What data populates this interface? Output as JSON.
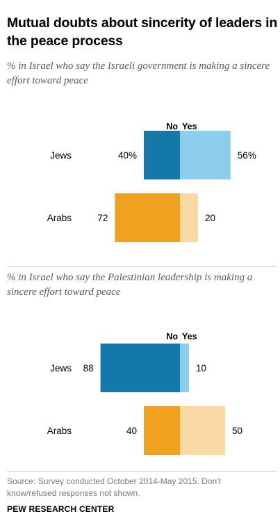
{
  "title": "Mutual doubts about sincerity of leaders in the peace process",
  "colors": {
    "no": "#1479a8",
    "yes_jews": "#8dcdee",
    "no_arabs": "#eea21f",
    "yes_arabs": "#f8d9a4"
  },
  "chart_data": [
    {
      "type": "bar",
      "orientation": "horizontal-diverging",
      "title": "% in Israel who say the Israeli government is making a sincere effort toward peace",
      "legend": [
        "No",
        "Yes"
      ],
      "categories": [
        "Jews",
        "Arabs"
      ],
      "series": [
        {
          "name": "No",
          "values": [
            40,
            72
          ],
          "labels": [
            "40%",
            "72"
          ]
        },
        {
          "name": "Yes",
          "values": [
            56,
            20
          ],
          "labels": [
            "56%",
            "20"
          ]
        }
      ]
    },
    {
      "type": "bar",
      "orientation": "horizontal-diverging",
      "title": "% in Israel who say the Palestinian leadership is making a sincere effort toward peace",
      "legend": [
        "No",
        "Yes"
      ],
      "categories": [
        "Jews",
        "Arabs"
      ],
      "series": [
        {
          "name": "No",
          "values": [
            88,
            40
          ],
          "labels": [
            "88",
            "40"
          ]
        },
        {
          "name": "Yes",
          "values": [
            10,
            50
          ],
          "labels": [
            "10",
            "50"
          ]
        }
      ]
    }
  ],
  "note": "Source: Survey conducted October 2014-May 2015. Don't know/refused responses not shown.",
  "brand": "PEW RESEARCH CENTER"
}
